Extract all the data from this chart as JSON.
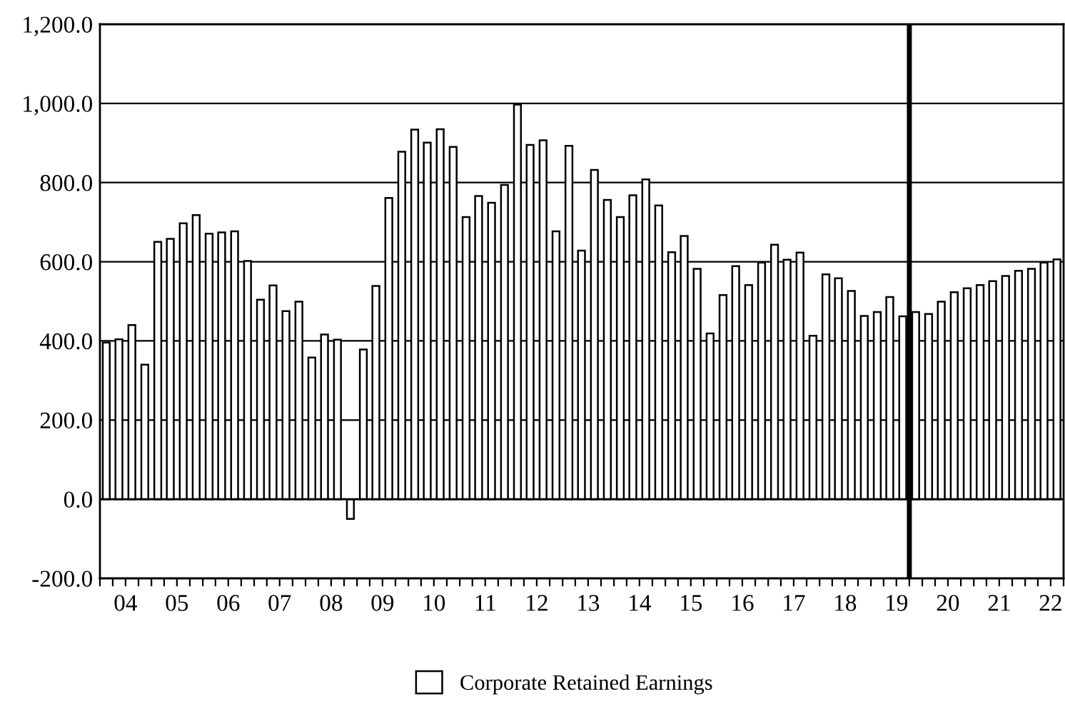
{
  "chart_data": {
    "type": "bar",
    "x": [
      "2004-02-15",
      "2004-05-15",
      "2004-08-15",
      "2004-11-15",
      "2005-02-15",
      "2005-05-15",
      "2005-08-15",
      "2005-11-15",
      "2006-02-15",
      "2006-05-15",
      "2006-08-15",
      "2006-11-15",
      "2007-02-15",
      "2007-05-15",
      "2007-08-15",
      "2007-11-15",
      "2008-02-15",
      "2008-05-15",
      "2008-08-15",
      "2008-11-15",
      "2009-02-15",
      "2009-05-15",
      "2009-08-15",
      "2009-11-15",
      "2010-02-15",
      "2010-05-15",
      "2010-08-15",
      "2010-11-15",
      "2011-02-15",
      "2011-05-15",
      "2011-08-15",
      "2011-11-15",
      "2012-02-15",
      "2012-05-15",
      "2012-08-15",
      "2012-11-15",
      "2013-02-15",
      "2013-05-15",
      "2013-08-15",
      "2013-11-15",
      "2014-02-15",
      "2014-05-15",
      "2014-08-15",
      "2014-11-15",
      "2015-02-15",
      "2015-05-15",
      "2015-08-15",
      "2015-11-15",
      "2016-02-15",
      "2016-05-15",
      "2016-08-15",
      "2016-11-15",
      "2017-02-15",
      "2017-05-15",
      "2017-08-15",
      "2017-11-15",
      "2018-02-15",
      "2018-05-15",
      "2018-08-15",
      "2018-11-15",
      "2019-02-15",
      "2019-05-15",
      "2019-08-15",
      "2019-11-15",
      "2020-02-15",
      "2020-05-15",
      "2020-08-15",
      "2020-11-15",
      "2021-02-15",
      "2021-05-15",
      "2021-08-15",
      "2021-11-15",
      "2022-02-15",
      "2022-05-15",
      "2022-08-15"
    ],
    "series": [
      {
        "name": "Corporate Retained Earnings",
        "color": "#ffffff",
        "values": [
          396,
          404,
          440,
          340,
          650,
          658,
          697,
          718,
          671,
          674,
          677,
          602,
          504,
          540,
          475,
          499,
          358,
          416,
          403,
          -50,
          378,
          539,
          761,
          878,
          934,
          901,
          935,
          890,
          713,
          766,
          749,
          794,
          997,
          895,
          907,
          677,
          893,
          628,
          832,
          756,
          713,
          768,
          808,
          742,
          624,
          665,
          582,
          419,
          516,
          589,
          541,
          598,
          643,
          605,
          623,
          413,
          568,
          558,
          526,
          463,
          473,
          511,
          462,
          473,
          468,
          499,
          523,
          533,
          541,
          551,
          564,
          577,
          582,
          598,
          606
        ]
      }
    ],
    "xlim": [
      "2004-01-01",
      "2022-10-01"
    ],
    "xticks": [
      {
        "value": "2004-01-01",
        "label": null
      },
      {
        "value": "2004-04-01",
        "label": null
      },
      {
        "value": "2004-07-01",
        "label": "04"
      },
      {
        "value": "2004-10-01",
        "label": null
      },
      {
        "value": "2005-01-01",
        "label": null
      },
      {
        "value": "2005-04-01",
        "label": null
      },
      {
        "value": "2005-07-01",
        "label": "05"
      },
      {
        "value": "2005-10-01",
        "label": null
      },
      {
        "value": "2006-01-01",
        "label": null
      },
      {
        "value": "2006-04-01",
        "label": null
      },
      {
        "value": "2006-07-01",
        "label": "06"
      },
      {
        "value": "2006-10-01",
        "label": null
      },
      {
        "value": "2007-01-01",
        "label": null
      },
      {
        "value": "2007-04-01",
        "label": null
      },
      {
        "value": "2007-07-01",
        "label": "07"
      },
      {
        "value": "2007-10-01",
        "label": null
      },
      {
        "value": "2008-01-01",
        "label": null
      },
      {
        "value": "2008-04-01",
        "label": null
      },
      {
        "value": "2008-07-01",
        "label": "08"
      },
      {
        "value": "2008-10-01",
        "label": null
      },
      {
        "value": "2009-01-01",
        "label": null
      },
      {
        "value": "2009-04-01",
        "label": null
      },
      {
        "value": "2009-07-01",
        "label": "09"
      },
      {
        "value": "2009-10-01",
        "label": null
      },
      {
        "value": "2010-01-01",
        "label": null
      },
      {
        "value": "2010-04-01",
        "label": null
      },
      {
        "value": "2010-07-01",
        "label": "10"
      },
      {
        "value": "2010-10-01",
        "label": null
      },
      {
        "value": "2011-01-01",
        "label": null
      },
      {
        "value": "2011-04-01",
        "label": null
      },
      {
        "value": "2011-07-01",
        "label": "11"
      },
      {
        "value": "2011-10-01",
        "label": null
      },
      {
        "value": "2012-01-01",
        "label": null
      },
      {
        "value": "2012-04-01",
        "label": null
      },
      {
        "value": "2012-07-01",
        "label": "12"
      },
      {
        "value": "2012-10-01",
        "label": null
      },
      {
        "value": "2013-01-01",
        "label": null
      },
      {
        "value": "2013-04-01",
        "label": null
      },
      {
        "value": "2013-07-01",
        "label": "13"
      },
      {
        "value": "2013-10-01",
        "label": null
      },
      {
        "value": "2014-01-01",
        "label": null
      },
      {
        "value": "2014-04-01",
        "label": null
      },
      {
        "value": "2014-07-01",
        "label": "14"
      },
      {
        "value": "2014-10-01",
        "label": null
      },
      {
        "value": "2015-01-01",
        "label": null
      },
      {
        "value": "2015-04-01",
        "label": null
      },
      {
        "value": "2015-07-01",
        "label": "15"
      },
      {
        "value": "2015-10-01",
        "label": null
      },
      {
        "value": "2016-01-01",
        "label": null
      },
      {
        "value": "2016-04-01",
        "label": null
      },
      {
        "value": "2016-07-01",
        "label": "16"
      },
      {
        "value": "2016-10-01",
        "label": null
      },
      {
        "value": "2017-01-01",
        "label": null
      },
      {
        "value": "2017-04-01",
        "label": null
      },
      {
        "value": "2017-07-01",
        "label": "17"
      },
      {
        "value": "2017-10-01",
        "label": null
      },
      {
        "value": "2018-01-01",
        "label": null
      },
      {
        "value": "2018-04-01",
        "label": null
      },
      {
        "value": "2018-07-01",
        "label": "18"
      },
      {
        "value": "2018-10-01",
        "label": null
      },
      {
        "value": "2019-01-01",
        "label": null
      },
      {
        "value": "2019-04-01",
        "label": null
      },
      {
        "value": "2019-07-01",
        "label": "19"
      },
      {
        "value": "2019-10-01",
        "label": null
      },
      {
        "value": "2020-01-01",
        "label": null
      },
      {
        "value": "2020-04-01",
        "label": null
      },
      {
        "value": "2020-07-01",
        "label": "20"
      },
      {
        "value": "2020-10-01",
        "label": null
      },
      {
        "value": "2021-01-01",
        "label": null
      },
      {
        "value": "2021-04-01",
        "label": null
      },
      {
        "value": "2021-07-01",
        "label": "21"
      },
      {
        "value": "2021-10-01",
        "label": null
      },
      {
        "value": "2022-01-01",
        "label": null
      },
      {
        "value": "2022-04-01",
        "label": null
      },
      {
        "value": "2022-07-01",
        "label": "22"
      },
      {
        "value": "2022-10-01",
        "label": null
      }
    ],
    "ylim": [
      -200,
      1200
    ],
    "yticks": [
      {
        "value": -200,
        "label": "-200.0"
      },
      {
        "value": 0,
        "label": "0.0"
      },
      {
        "value": 200,
        "label": "200.0"
      },
      {
        "value": 400,
        "label": "400.0"
      },
      {
        "value": 600,
        "label": "600.0"
      },
      {
        "value": 800,
        "label": "800.0"
      },
      {
        "value": 1000,
        "label": "1,000.0"
      },
      {
        "value": 1200,
        "label": "1,200.0"
      }
    ],
    "grid": "y",
    "legend": "bottom",
    "ref_lines": [
      {
        "axis": "x",
        "value": "2019-10-01",
        "color": "#000000",
        "line_style": "solid"
      }
    ]
  }
}
